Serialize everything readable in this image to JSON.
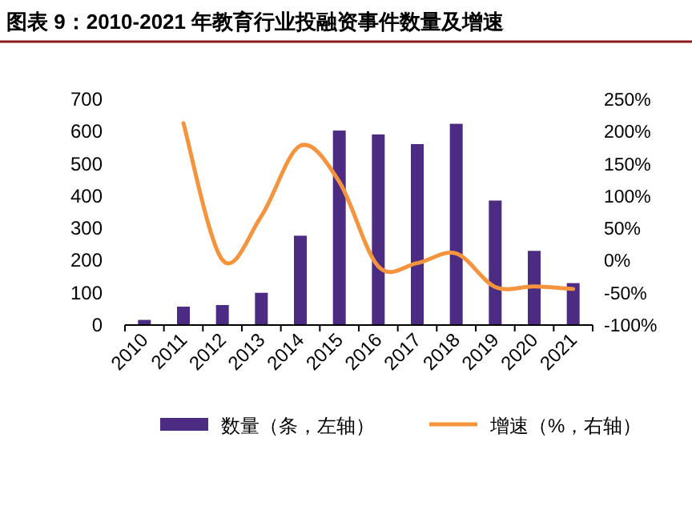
{
  "chart_data": {
    "type": "bar",
    "title": "图表 9：2010-2021 年教育行业投融资事件数量及增速",
    "categories": [
      "2010",
      "2011",
      "2012",
      "2013",
      "2014",
      "2015",
      "2016",
      "2017",
      "2018",
      "2019",
      "2020",
      "2021"
    ],
    "series": [
      {
        "name": "数量（条，左轴）",
        "color": "#4b2c82",
        "values": [
          16,
          57,
          62,
          100,
          277,
          603,
          591,
          561,
          624,
          386,
          230,
          130
        ]
      },
      {
        "name": "增速（%，右轴）",
        "type": "line",
        "axis": "y2",
        "color": "#f5943c",
        "values": [
          null,
          213,
          1,
          69,
          178,
          122,
          -9,
          -4,
          11,
          -41,
          -40,
          -44
        ]
      }
    ],
    "ylim": [
      0,
      700
    ],
    "yticks": [
      0,
      100,
      200,
      300,
      400,
      500,
      600,
      700
    ],
    "y2lim": [
      -100,
      250
    ],
    "y2ticks": [
      {
        "value": -100,
        "label": "-100%"
      },
      {
        "value": -50,
        "label": "-50%"
      },
      {
        "value": 0,
        "label": "0%"
      },
      {
        "value": 50,
        "label": "50%"
      },
      {
        "value": 100,
        "label": "100%"
      },
      {
        "value": 150,
        "label": "150%"
      },
      {
        "value": 200,
        "label": "200%"
      },
      {
        "value": 250,
        "label": "250%"
      }
    ],
    "legend": "bottom",
    "grid": false,
    "marker": "none",
    "line_style": "solid"
  }
}
